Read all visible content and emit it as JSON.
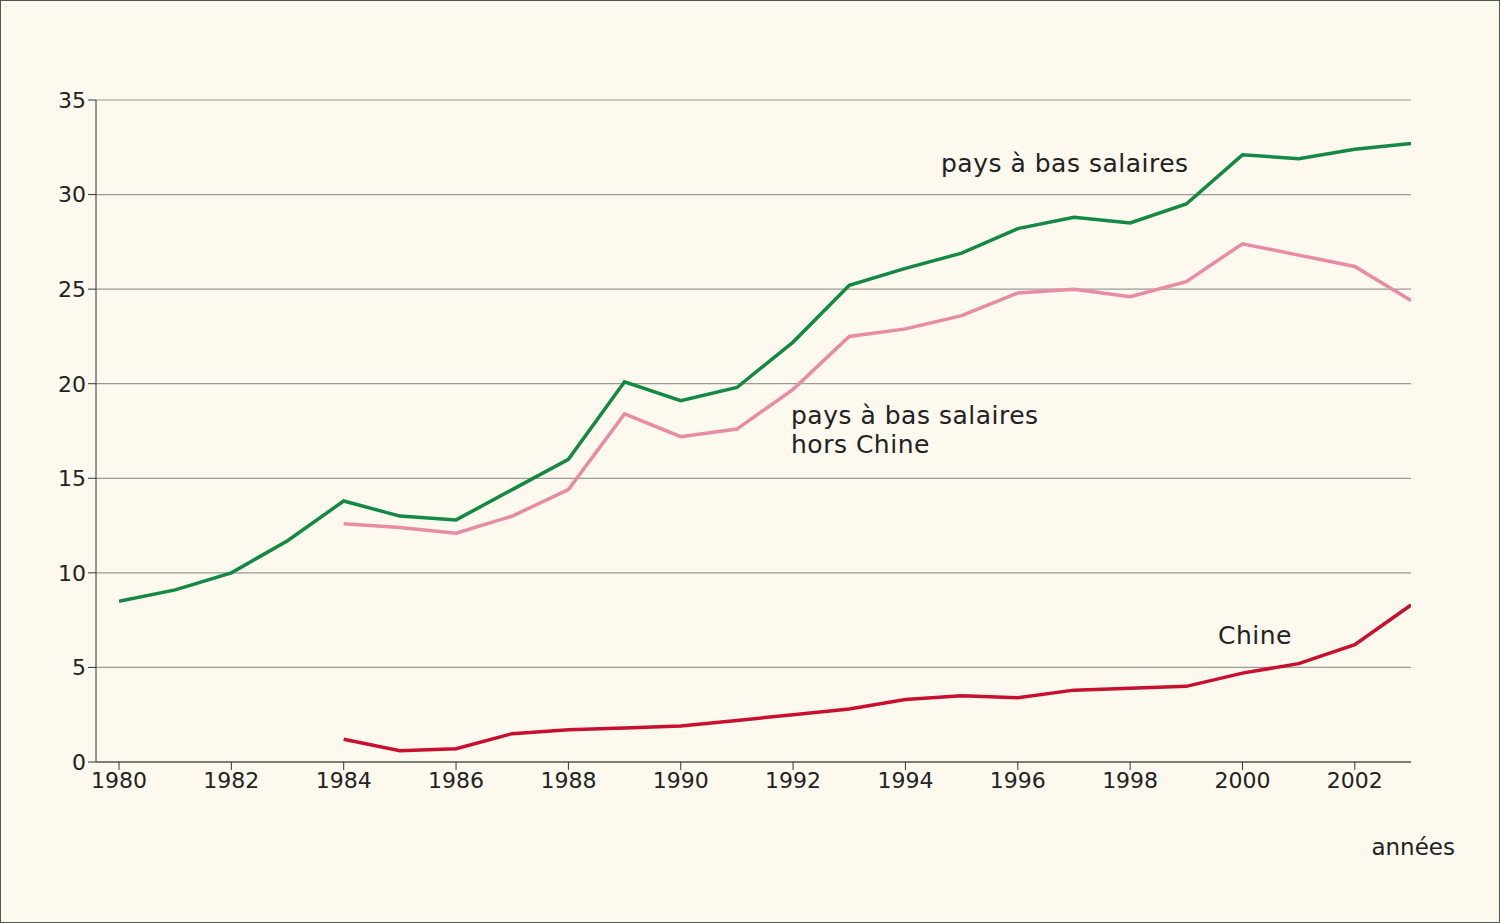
{
  "chart_data": {
    "type": "line",
    "x_label": "années",
    "x": [
      1980,
      1981,
      1982,
      1983,
      1984,
      1985,
      1986,
      1987,
      1988,
      1989,
      1990,
      1991,
      1992,
      1993,
      1994,
      1995,
      1996,
      1997,
      1998,
      1999,
      2000,
      2001,
      2002,
      2003
    ],
    "xlim": [
      1980,
      2003
    ],
    "xticks": [
      1980,
      1982,
      1984,
      1986,
      1988,
      1990,
      1992,
      1994,
      1996,
      1998,
      2000,
      2002
    ],
    "ylim": [
      0,
      35
    ],
    "yticks": [
      0,
      5,
      10,
      15,
      20,
      25,
      30,
      35
    ],
    "grid": true,
    "series": [
      {
        "name": "pays à bas salaires",
        "color": "#138a43",
        "values": [
          8.5,
          9.1,
          10.0,
          11.7,
          13.8,
          13.0,
          12.8,
          14.4,
          16.0,
          20.1,
          19.1,
          19.8,
          22.2,
          25.2,
          26.1,
          26.9,
          28.2,
          28.8,
          28.5,
          29.5,
          32.1,
          31.9,
          32.4,
          32.7
        ]
      },
      {
        "name": "pays à bas salaires hors Chine",
        "color": "#e98aa6",
        "values": [
          null,
          null,
          null,
          null,
          12.6,
          12.4,
          12.1,
          13.0,
          14.4,
          18.4,
          17.2,
          17.6,
          19.7,
          22.5,
          22.9,
          23.6,
          24.8,
          25.0,
          24.6,
          25.4,
          27.4,
          26.8,
          26.2,
          24.4
        ]
      },
      {
        "name": "Chine",
        "color": "#c8102e",
        "values": [
          null,
          null,
          null,
          null,
          1.2,
          0.6,
          0.7,
          1.5,
          1.7,
          1.8,
          1.9,
          2.2,
          2.5,
          2.8,
          3.3,
          3.5,
          3.4,
          3.8,
          3.9,
          4.0,
          4.7,
          5.2,
          6.2,
          8.3
        ]
      }
    ]
  }
}
